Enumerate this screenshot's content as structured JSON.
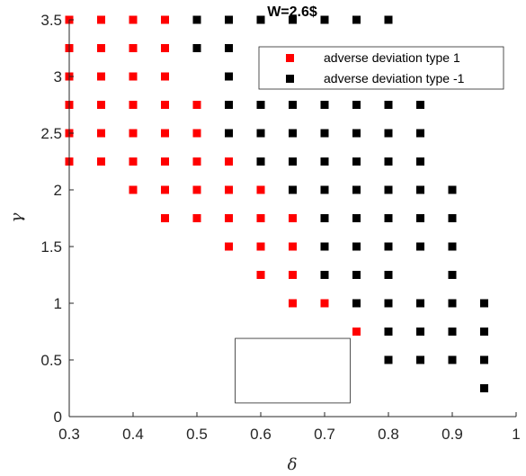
{
  "chart_data": {
    "type": "scatter",
    "title": "W=2.6$",
    "xlabel": "δ",
    "ylabel": "γ",
    "xlim": [
      0.3,
      1
    ],
    "ylim": [
      0,
      3.5
    ],
    "xticks": [
      "0.3",
      "0.4",
      "0.5",
      "0.6",
      "0.7",
      "0.8",
      "0.9",
      "1"
    ],
    "yticks": [
      "0",
      "0.5",
      "1",
      "1.5",
      "2",
      "2.5",
      "3",
      "3.5"
    ],
    "grid": false,
    "legend_position": "top-right",
    "series": [
      {
        "name": "adverse deviation type 1",
        "color": "#ff0000",
        "marker": "square",
        "points": [
          [
            0.3,
            3.5
          ],
          [
            0.35,
            3.5
          ],
          [
            0.4,
            3.5
          ],
          [
            0.45,
            3.5
          ],
          [
            0.3,
            3.25
          ],
          [
            0.35,
            3.25
          ],
          [
            0.4,
            3.25
          ],
          [
            0.45,
            3.25
          ],
          [
            0.3,
            3.0
          ],
          [
            0.35,
            3.0
          ],
          [
            0.4,
            3.0
          ],
          [
            0.45,
            3.0
          ],
          [
            0.3,
            2.75
          ],
          [
            0.35,
            2.75
          ],
          [
            0.4,
            2.75
          ],
          [
            0.45,
            2.75
          ],
          [
            0.5,
            2.75
          ],
          [
            0.3,
            2.5
          ],
          [
            0.35,
            2.5
          ],
          [
            0.4,
            2.5
          ],
          [
            0.45,
            2.5
          ],
          [
            0.5,
            2.5
          ],
          [
            0.3,
            2.25
          ],
          [
            0.35,
            2.25
          ],
          [
            0.4,
            2.25
          ],
          [
            0.45,
            2.25
          ],
          [
            0.5,
            2.25
          ],
          [
            0.55,
            2.25
          ],
          [
            0.4,
            2.0
          ],
          [
            0.45,
            2.0
          ],
          [
            0.5,
            2.0
          ],
          [
            0.55,
            2.0
          ],
          [
            0.6,
            2.0
          ],
          [
            0.45,
            1.75
          ],
          [
            0.5,
            1.75
          ],
          [
            0.55,
            1.75
          ],
          [
            0.6,
            1.75
          ],
          [
            0.65,
            1.75
          ],
          [
            0.55,
            1.5
          ],
          [
            0.6,
            1.5
          ],
          [
            0.65,
            1.5
          ],
          [
            0.6,
            1.25
          ],
          [
            0.65,
            1.25
          ],
          [
            0.65,
            1.0
          ],
          [
            0.7,
            1.0
          ],
          [
            0.75,
            0.75
          ]
        ]
      },
      {
        "name": "adverse deviation type -1",
        "color": "#000000",
        "marker": "square",
        "points": [
          [
            0.5,
            3.5
          ],
          [
            0.55,
            3.5
          ],
          [
            0.6,
            3.5
          ],
          [
            0.65,
            3.5
          ],
          [
            0.7,
            3.5
          ],
          [
            0.75,
            3.5
          ],
          [
            0.8,
            3.5
          ],
          [
            0.5,
            3.25
          ],
          [
            0.55,
            3.25
          ],
          [
            0.55,
            3.0
          ],
          [
            0.55,
            2.75
          ],
          [
            0.6,
            2.75
          ],
          [
            0.65,
            2.75
          ],
          [
            0.7,
            2.75
          ],
          [
            0.75,
            2.75
          ],
          [
            0.8,
            2.75
          ],
          [
            0.85,
            2.75
          ],
          [
            0.55,
            2.5
          ],
          [
            0.6,
            2.5
          ],
          [
            0.65,
            2.5
          ],
          [
            0.7,
            2.5
          ],
          [
            0.75,
            2.5
          ],
          [
            0.8,
            2.5
          ],
          [
            0.85,
            2.5
          ],
          [
            0.6,
            2.25
          ],
          [
            0.65,
            2.25
          ],
          [
            0.7,
            2.25
          ],
          [
            0.75,
            2.25
          ],
          [
            0.8,
            2.25
          ],
          [
            0.85,
            2.25
          ],
          [
            0.65,
            2.0
          ],
          [
            0.7,
            2.0
          ],
          [
            0.75,
            2.0
          ],
          [
            0.8,
            2.0
          ],
          [
            0.85,
            2.0
          ],
          [
            0.9,
            2.0
          ],
          [
            0.7,
            1.75
          ],
          [
            0.75,
            1.75
          ],
          [
            0.8,
            1.75
          ],
          [
            0.85,
            1.75
          ],
          [
            0.9,
            1.75
          ],
          [
            0.7,
            1.5
          ],
          [
            0.75,
            1.5
          ],
          [
            0.8,
            1.5
          ],
          [
            0.85,
            1.5
          ],
          [
            0.9,
            1.5
          ],
          [
            0.7,
            1.25
          ],
          [
            0.75,
            1.25
          ],
          [
            0.8,
            1.25
          ],
          [
            0.9,
            1.25
          ],
          [
            0.75,
            1.0
          ],
          [
            0.8,
            1.0
          ],
          [
            0.85,
            1.0
          ],
          [
            0.9,
            1.0
          ],
          [
            0.95,
            1.0
          ],
          [
            0.8,
            0.75
          ],
          [
            0.85,
            0.75
          ],
          [
            0.9,
            0.75
          ],
          [
            0.95,
            0.75
          ],
          [
            0.8,
            0.5
          ],
          [
            0.85,
            0.5
          ],
          [
            0.9,
            0.5
          ],
          [
            0.95,
            0.5
          ],
          [
            0.95,
            0.25
          ]
        ]
      }
    ],
    "annotations": [
      {
        "type": "empty-rectangle",
        "x": [
          0.56,
          0.74
        ],
        "y": [
          0.12,
          0.69
        ]
      }
    ]
  }
}
